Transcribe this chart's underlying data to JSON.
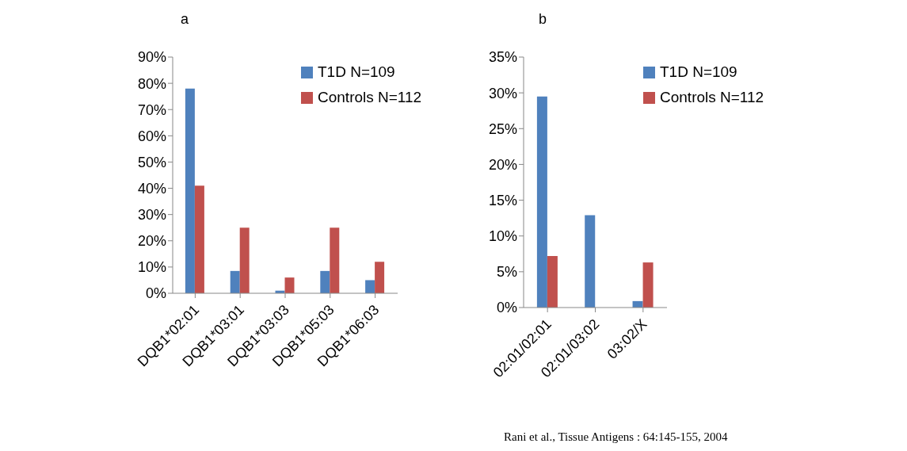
{
  "chart_data": [
    {
      "type": "bar",
      "title": "a",
      "categories": [
        "DQB1*02:01",
        "DQB1*03:01",
        "DQB1*03:03",
        "DQB1*05:03",
        "DQB1*06:03"
      ],
      "series": [
        {
          "name": "T1D N=109",
          "color": "#4f81bd",
          "values": [
            78,
            8.5,
            1,
            8.5,
            5
          ]
        },
        {
          "name": "Controls N=112",
          "color": "#c0504d",
          "values": [
            41,
            25,
            6,
            25,
            12
          ]
        }
      ],
      "ylim": [
        0,
        90
      ],
      "yticks": [
        {
          "value": 0,
          "label": "0%"
        },
        {
          "value": 10,
          "label": "10%"
        },
        {
          "value": 20,
          "label": "20%"
        },
        {
          "value": 30,
          "label": "30%"
        },
        {
          "value": 40,
          "label": "40%"
        },
        {
          "value": 50,
          "label": "50%"
        },
        {
          "value": 60,
          "label": "60%"
        },
        {
          "value": 70,
          "label": "70%"
        },
        {
          "value": 80,
          "label": "80%"
        },
        {
          "value": 90,
          "label": "90%"
        }
      ],
      "grid": false,
      "legend": "top right"
    },
    {
      "type": "bar",
      "title": "b",
      "categories": [
        "02:01/02:01",
        "02:01/03:02",
        "03:02/X"
      ],
      "series": [
        {
          "name": "T1D N=109",
          "color": "#4f81bd",
          "values": [
            29.5,
            12.9,
            0.9
          ]
        },
        {
          "name": "Controls N=112",
          "color": "#c0504d",
          "values": [
            7.2,
            0,
            6.3
          ]
        }
      ],
      "ylim": [
        0,
        35
      ],
      "yticks": [
        {
          "value": 0,
          "label": "0%"
        },
        {
          "value": 5,
          "label": "5%"
        },
        {
          "value": 10,
          "label": "10%"
        },
        {
          "value": 15,
          "label": "15%"
        },
        {
          "value": 20,
          "label": "20%"
        },
        {
          "value": 25,
          "label": "25%"
        },
        {
          "value": 30,
          "label": "30%"
        },
        {
          "value": 35,
          "label": "35%"
        }
      ],
      "grid": false,
      "legend": "top right",
      "annotations": [
        "Rani et al., Tissue Antigens : 64:145-155, 2004"
      ]
    }
  ]
}
